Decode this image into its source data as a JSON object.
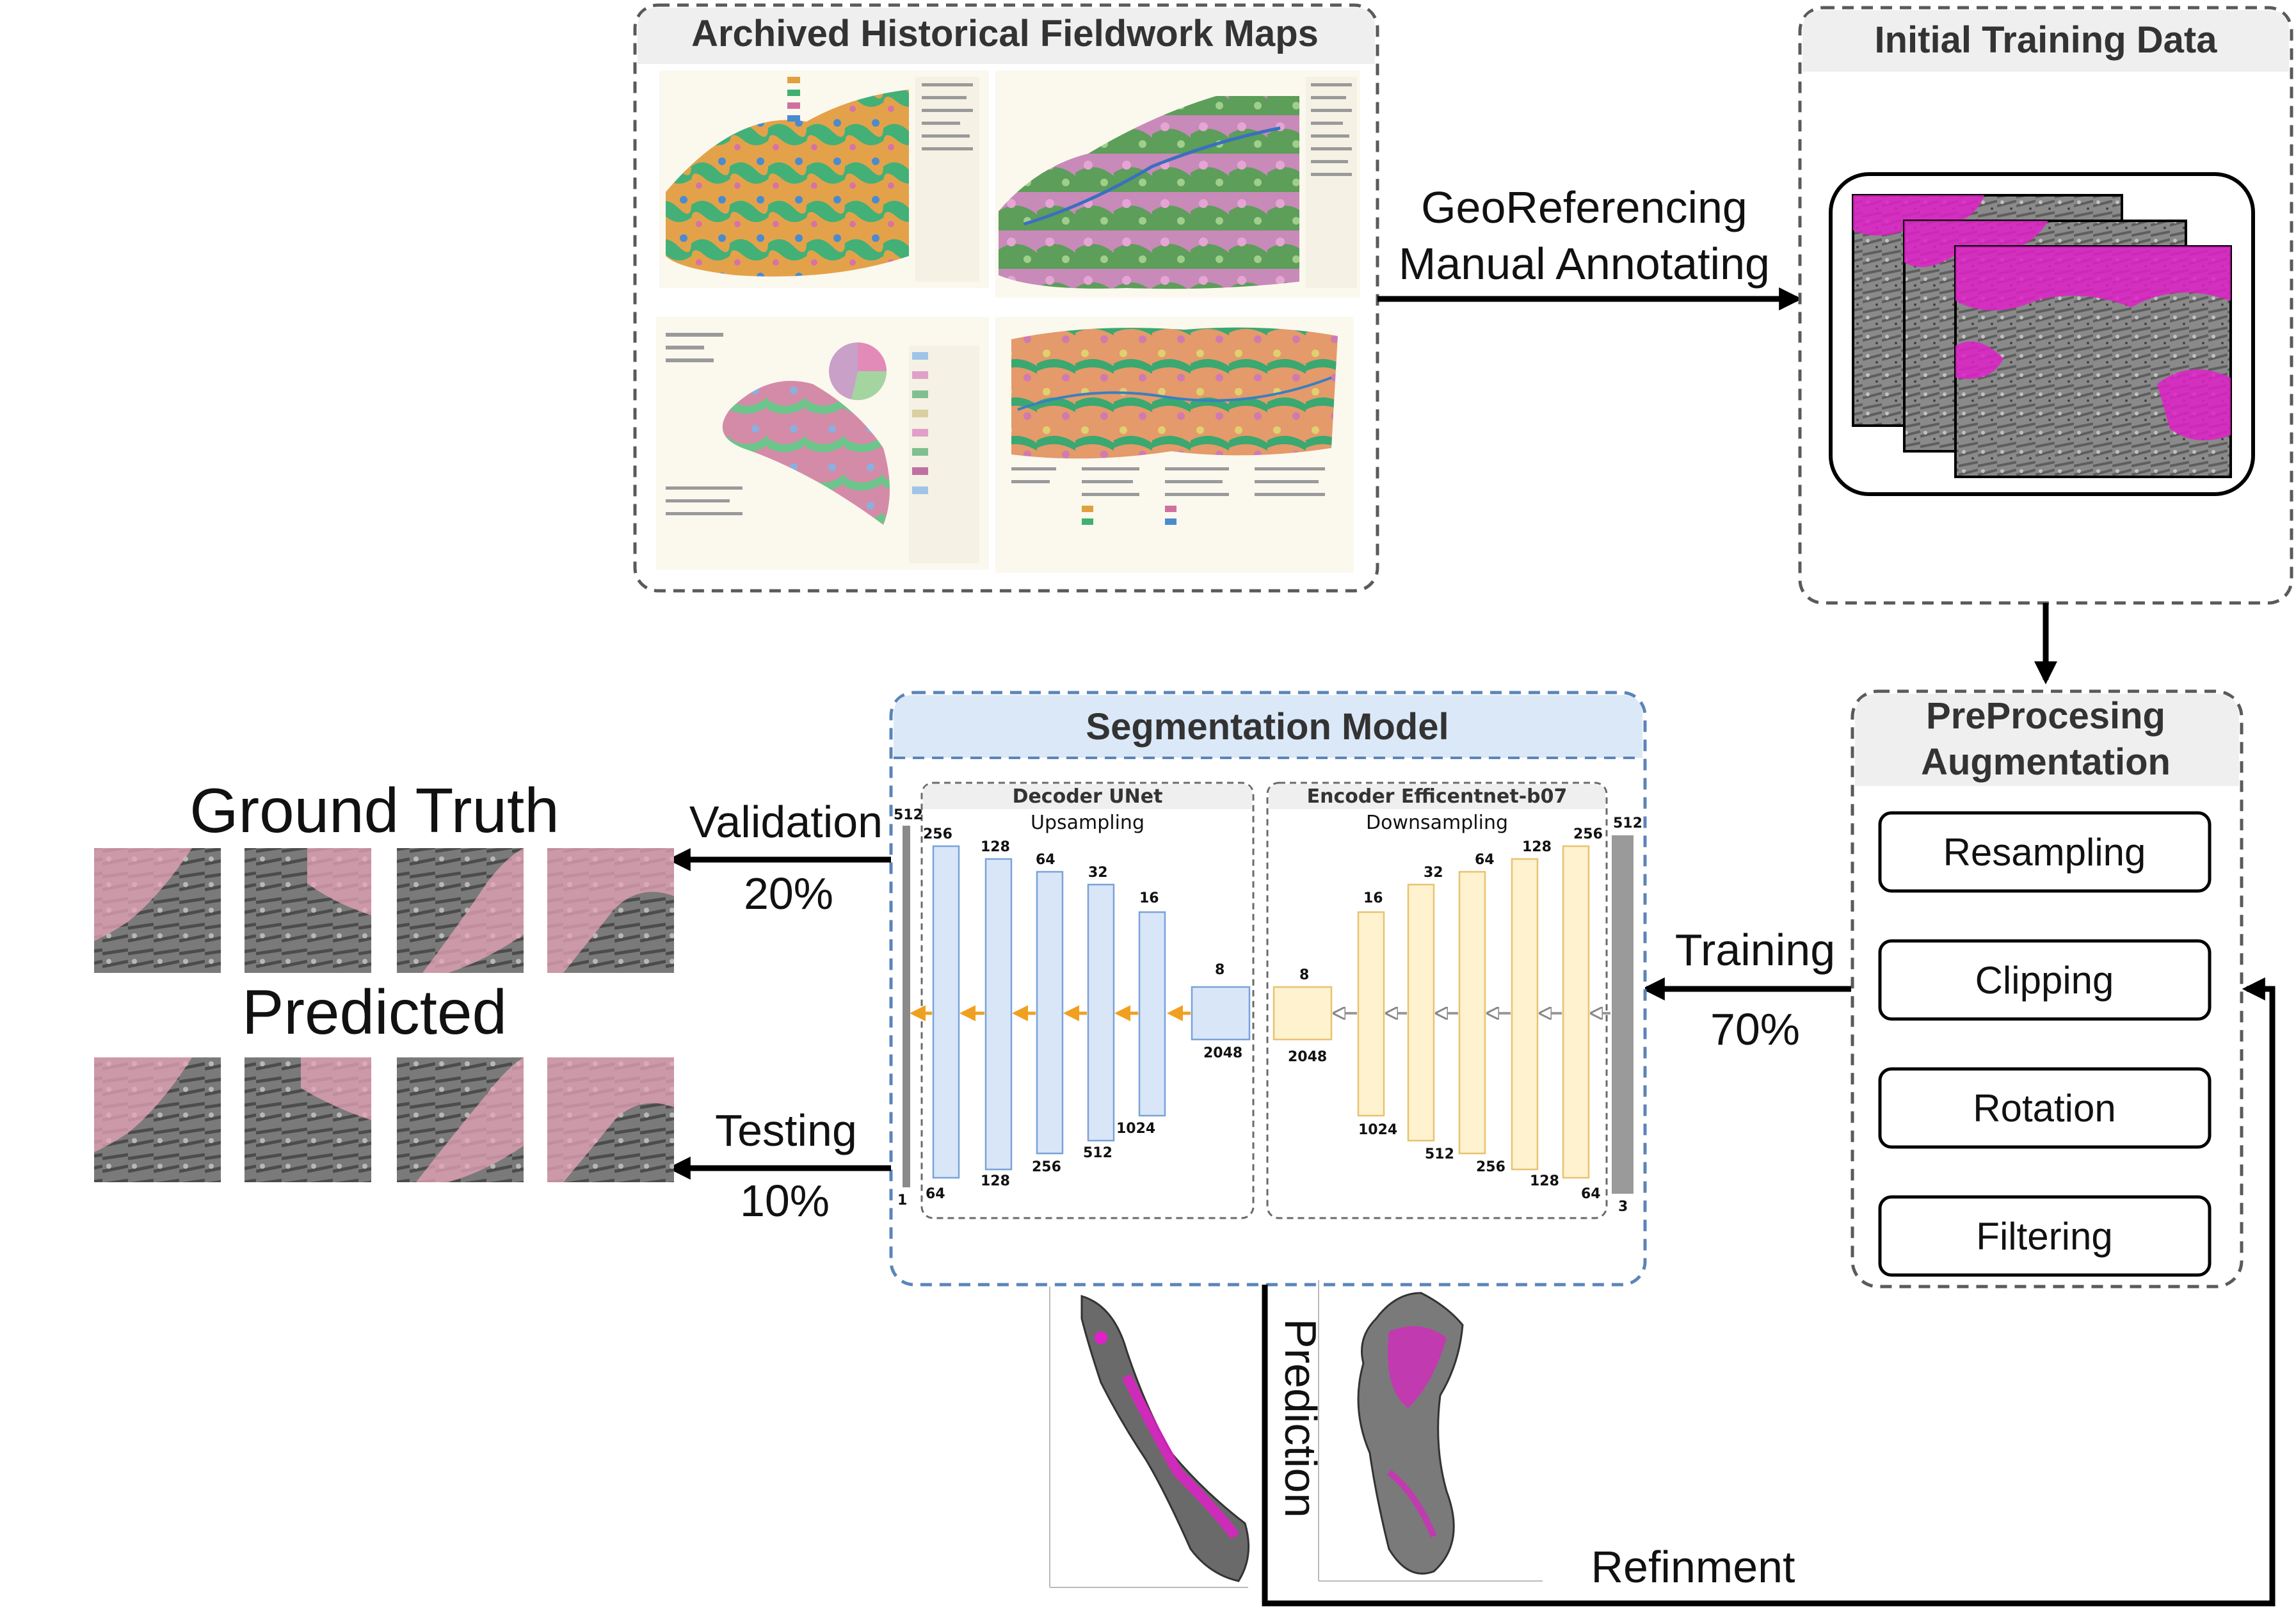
{
  "archive": {
    "title": "Archived Historical Fieldwork Maps"
  },
  "georef": {
    "line1": "GeoReferencing",
    "line2": "Manual Annotating"
  },
  "training_data": {
    "title": "Initial Training Data"
  },
  "preprocessing": {
    "title_line1": "PreProcesing",
    "title_line2": "Augmentation",
    "steps": [
      "Resampling",
      "Clipping",
      "Rotation",
      "Filtering"
    ]
  },
  "training": {
    "label": "Training",
    "percent": "70%"
  },
  "model": {
    "title": "Segmentation Model",
    "decoder": {
      "title": "Decoder UNet",
      "subtitle": "Upsampling"
    },
    "encoder": {
      "title": "Encoder Efficentnet-b07",
      "subtitle": "Downsampling"
    },
    "decoder_blocks": [
      {
        "top": "256",
        "bottom": "64"
      },
      {
        "top": "128",
        "bottom": "128"
      },
      {
        "top": "64",
        "bottom": "256"
      },
      {
        "top": "32",
        "bottom": "512"
      },
      {
        "top": "16",
        "bottom": "1024"
      },
      {
        "top": "8",
        "bottom": "2048"
      }
    ],
    "encoder_blocks": [
      {
        "top": "8",
        "bottom": "2048"
      },
      {
        "top": "16",
        "bottom": "1024"
      },
      {
        "top": "32",
        "bottom": "512"
      },
      {
        "top": "64",
        "bottom": "256"
      },
      {
        "top": "128",
        "bottom": "128"
      },
      {
        "top": "256",
        "bottom": "64"
      }
    ],
    "output_bar": {
      "top": "512",
      "bottom": "1"
    },
    "input_bar": {
      "top": "512",
      "bottom": "3"
    }
  },
  "validation": {
    "label": "Validation",
    "percent": "20%"
  },
  "testing": {
    "label": "Testing",
    "percent": "10%"
  },
  "results": {
    "ground_truth": "Ground Truth",
    "predicted": "Predicted"
  },
  "prediction": {
    "label": "Prediction"
  },
  "refinement": {
    "label": "Refinment"
  },
  "colors": {
    "accent_magenta": "#e020c8",
    "decoder_fill": "#d9e6f8",
    "encoder_fill": "#fff2cf",
    "header_blue": "#dbe8f7"
  }
}
